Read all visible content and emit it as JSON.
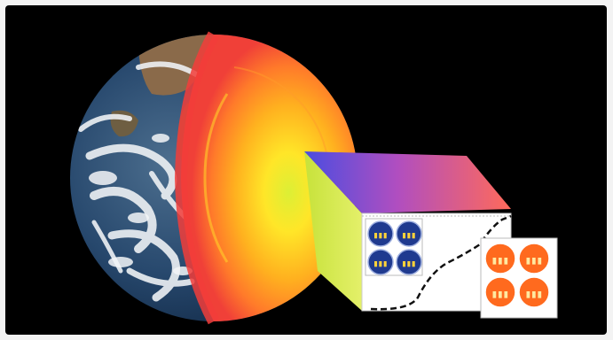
{
  "image": {
    "subject": "earth-cutaway-with-core-inset",
    "colors": {
      "background": "#000000",
      "ocean": "#1e3d63",
      "cloud": "#eef1f4",
      "crust": "#f24a3d",
      "mantle_outer": "#ff7a2a",
      "mantle_inner": "#ffb41e",
      "core_outer": "#ffd92a",
      "core_inner": "#f3ef3a",
      "atom_blue": "#1f3a8f",
      "atom_orange": "#ff6a1e"
    }
  },
  "inset": {
    "left_panel_atoms": 4,
    "right_panel_atoms": 4
  }
}
